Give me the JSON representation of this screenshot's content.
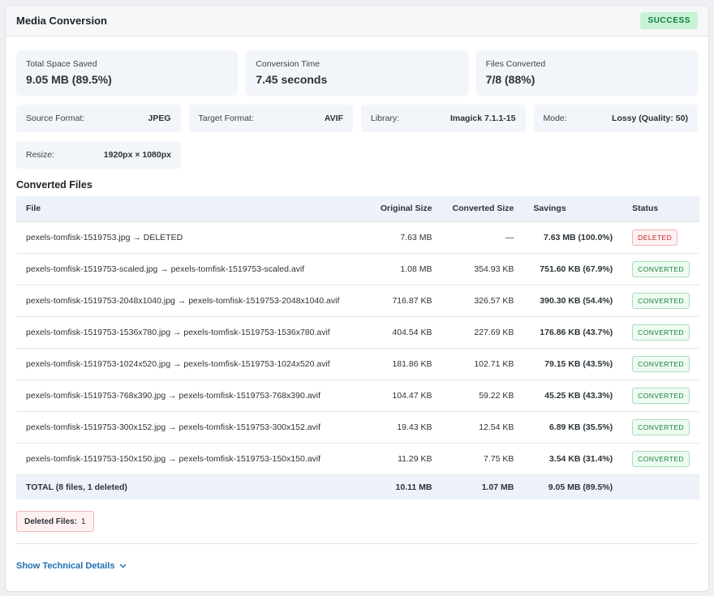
{
  "header": {
    "title": "Media Conversion",
    "status": "SUCCESS"
  },
  "stats": [
    {
      "label": "Total Space Saved",
      "value": "9.05 MB (89.5%)"
    },
    {
      "label": "Conversion Time",
      "value": "7.45 seconds"
    },
    {
      "label": "Files Converted",
      "value": "7/8 (88%)"
    }
  ],
  "info": {
    "source": {
      "label": "Source Format:",
      "value": "JPEG"
    },
    "target": {
      "label": "Target Format:",
      "value": "AVIF"
    },
    "library": {
      "label": "Library:",
      "value": "Imagick 7.1.1-15"
    },
    "mode": {
      "label": "Mode:",
      "value": "Lossy (Quality: 50)"
    },
    "resize": {
      "label": "Resize:",
      "value": "1920px × 1080px"
    }
  },
  "files": {
    "title": "Converted Files",
    "columns": [
      "File",
      "Original Size",
      "Converted Size",
      "Savings",
      "Status"
    ],
    "rows": [
      {
        "file": "pexels-tomfisk-1519753.jpg → DELETED",
        "original": "7.63 MB",
        "converted": "—",
        "savings": "7.63 MB (100.0%)",
        "status": "DELETED"
      },
      {
        "file": "pexels-tomfisk-1519753-scaled.jpg → pexels-tomfisk-1519753-scaled.avif",
        "original": "1.08 MB",
        "converted": "354.93 KB",
        "savings": "751.60 KB (67.9%)",
        "status": "CONVERTED"
      },
      {
        "file": "pexels-tomfisk-1519753-2048x1040.jpg → pexels-tomfisk-1519753-2048x1040.avif",
        "original": "716.87 KB",
        "converted": "326.57 KB",
        "savings": "390.30 KB (54.4%)",
        "status": "CONVERTED"
      },
      {
        "file": "pexels-tomfisk-1519753-1536x780.jpg → pexels-tomfisk-1519753-1536x780.avif",
        "original": "404.54 KB",
        "converted": "227.69 KB",
        "savings": "176.86 KB (43.7%)",
        "status": "CONVERTED"
      },
      {
        "file": "pexels-tomfisk-1519753-1024x520.jpg → pexels-tomfisk-1519753-1024x520.avif",
        "original": "181.86 KB",
        "converted": "102.71 KB",
        "savings": "79.15 KB (43.5%)",
        "status": "CONVERTED"
      },
      {
        "file": "pexels-tomfisk-1519753-768x390.jpg → pexels-tomfisk-1519753-768x390.avif",
        "original": "104.47 KB",
        "converted": "59.22 KB",
        "savings": "45.25 KB (43.3%)",
        "status": "CONVERTED"
      },
      {
        "file": "pexels-tomfisk-1519753-300x152.jpg → pexels-tomfisk-1519753-300x152.avif",
        "original": "19.43 KB",
        "converted": "12.54 KB",
        "savings": "6.89 KB (35.5%)",
        "status": "CONVERTED"
      },
      {
        "file": "pexels-tomfisk-1519753-150x150.jpg → pexels-tomfisk-1519753-150x150.avif",
        "original": "11.29 KB",
        "converted": "7.75 KB",
        "savings": "3.54 KB (31.4%)",
        "status": "CONVERTED"
      }
    ],
    "total": {
      "label": "TOTAL (8 files, 1 deleted)",
      "original": "10.11 MB",
      "converted": "1.07 MB",
      "savings": "9.05 MB (89.5%)"
    }
  },
  "deleted_box": {
    "label": "Deleted Files:",
    "count": "1"
  },
  "tech_link": {
    "label": "Show Technical Details",
    "icon": "chevron-down-icon"
  },
  "colors": {
    "accent": "#2271b1",
    "success": "#1a7f3c",
    "danger": "#c0272d"
  }
}
